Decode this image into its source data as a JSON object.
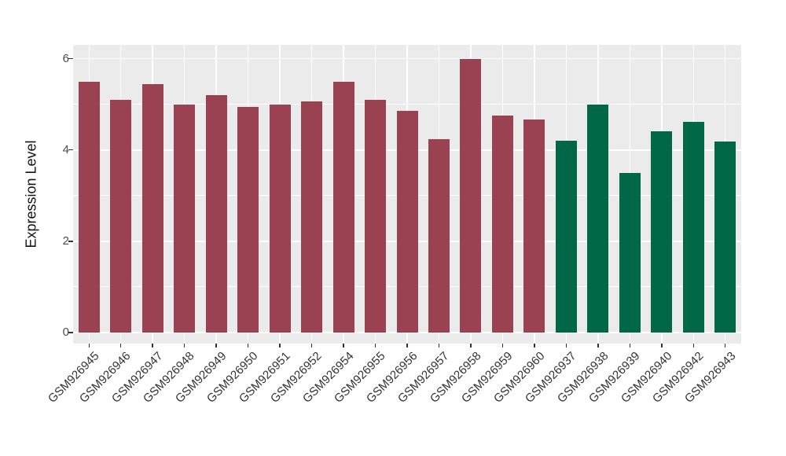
{
  "chart_data": {
    "type": "bar",
    "title": "",
    "xlabel": "",
    "ylabel": "Expression Level",
    "categories": [
      "GSM926945",
      "GSM926946",
      "GSM926947",
      "GSM926948",
      "GSM926949",
      "GSM926950",
      "GSM926951",
      "GSM926952",
      "GSM926954",
      "GSM926955",
      "GSM926956",
      "GSM926957",
      "GSM926958",
      "GSM926959",
      "GSM926960",
      "GSM926937",
      "GSM926938",
      "GSM926939",
      "GSM926940",
      "GSM926942",
      "GSM926943"
    ],
    "values": [
      5.5,
      5.09,
      5.45,
      5.0,
      5.2,
      4.94,
      5.0,
      5.06,
      5.5,
      5.09,
      4.86,
      4.23,
      6.0,
      4.75,
      4.66,
      4.21,
      5.0,
      3.5,
      4.41,
      4.61,
      4.19
    ],
    "bar_colors": [
      "#9B4252",
      "#9B4252",
      "#9B4252",
      "#9B4252",
      "#9B4252",
      "#9B4252",
      "#9B4252",
      "#9B4252",
      "#9B4252",
      "#9B4252",
      "#9B4252",
      "#9B4252",
      "#9B4252",
      "#9B4252",
      "#9B4252",
      "#006749",
      "#006749",
      "#006749",
      "#006749",
      "#006749",
      "#006749"
    ],
    "group_colors": {
      "left_group": "#9B4252",
      "right_group": "#006749"
    },
    "yticks": [
      0,
      2,
      4,
      6
    ],
    "minor_gridlines": [
      1,
      3,
      5
    ],
    "ylim": [
      -0.25,
      6.3
    ],
    "grid": "on",
    "legend": "none",
    "panel_bg": "#EBEBEB",
    "grid_color": "#FFFFFF",
    "axis_text_color": "#333333",
    "x_label_rotation_deg": 45
  }
}
